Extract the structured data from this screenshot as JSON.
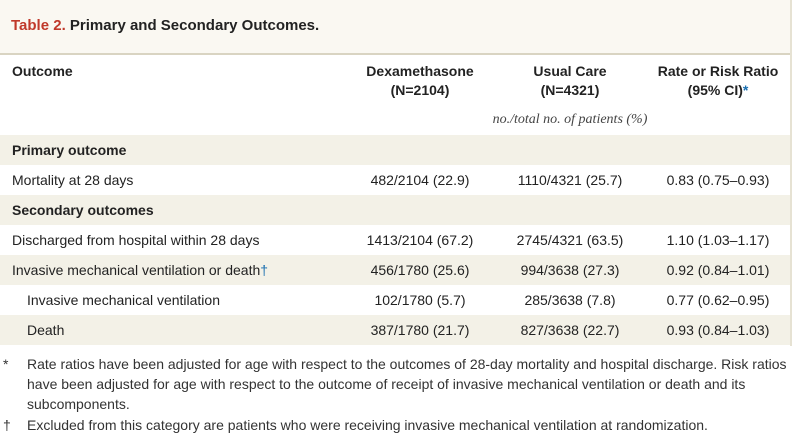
{
  "table": {
    "label": "Table 2.",
    "title": "Primary and Secondary Outcomes.",
    "columns": {
      "outcome": "Outcome",
      "dex": [
        "Dexamethasone",
        "(N=2104)"
      ],
      "usual": [
        "Usual Care",
        "(N=4321)"
      ],
      "ratio": [
        "Rate or Risk Ratio",
        "(95% CI)"
      ],
      "ratio_mark": "*"
    },
    "units": "no./total no. of patients (%)",
    "rows": [
      {
        "type": "section",
        "label": "Primary outcome"
      },
      {
        "type": "data",
        "label": "Mortality at 28 days",
        "dex": "482/2104 (22.9)",
        "usual": "1110/4321 (25.7)",
        "ratio": "0.83 (0.75–0.93)"
      },
      {
        "type": "section",
        "label": "Secondary outcomes"
      },
      {
        "type": "data",
        "label": "Discharged from hospital within 28 days",
        "dex": "1413/2104 (67.2)",
        "usual": "2745/4321 (63.5)",
        "ratio": "1.10 (1.03–1.17)"
      },
      {
        "type": "data",
        "label": "Invasive mechanical ventilation or death",
        "mark": "†",
        "dex": "456/1780 (25.6)",
        "usual": "994/3638 (27.3)",
        "ratio": "0.92 (0.84–1.01)"
      },
      {
        "type": "sub",
        "label": "Invasive mechanical ventilation",
        "dex": "102/1780 (5.7)",
        "usual": "285/3638 (7.8)",
        "ratio": "0.77 (0.62–0.95)"
      },
      {
        "type": "sub",
        "label": "Death",
        "dex": "387/1780 (21.7)",
        "usual": "827/3638 (22.7)",
        "ratio": "0.93 (0.84–1.03)"
      }
    ]
  },
  "footnotes": [
    {
      "symbol": "*",
      "text": "Rate ratios have been adjusted for age with respect to the outcomes of 28-day mortality and hospital discharge. Risk ratios have been adjusted for age with respect to the outcome of receipt of invasive mechanical ventilation or death and its subcomponents."
    },
    {
      "symbol": "†",
      "text": "Excluded from this category are patients who were receiving invasive mechanical ventilation at randomization."
    }
  ]
}
